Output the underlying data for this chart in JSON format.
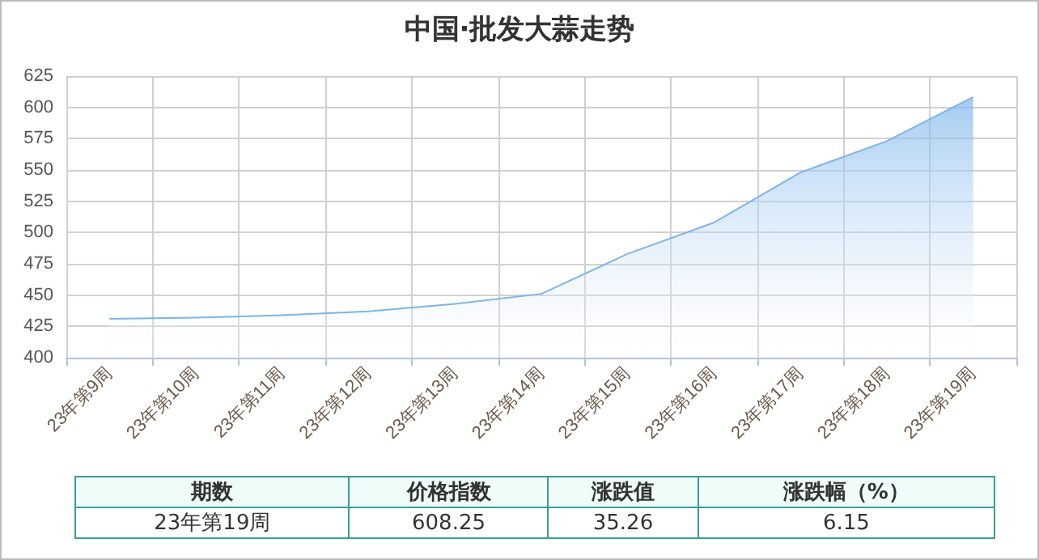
{
  "chart_data": {
    "type": "area",
    "title": "中国·批发大蒜走势",
    "categories": [
      "23年第9周",
      "23年第10周",
      "23年第11周",
      "23年第12周",
      "23年第13周",
      "23年第14周",
      "23年第15周",
      "23年第16周",
      "23年第17周",
      "23年第18周",
      "23年第19周"
    ],
    "series": [
      {
        "color": "#7cb5ec",
        "values": [
          431,
          432,
          434,
          437,
          443,
          451,
          483,
          508,
          548,
          573,
          608.25
        ]
      }
    ],
    "ylim": [
      400,
      625
    ],
    "yticks": [
      400,
      425,
      450,
      475,
      500,
      525,
      550,
      575,
      600,
      625
    ],
    "grid": true,
    "marker": "none",
    "annotations": [
      "期数",
      "价格指数",
      "涨跌值",
      "涨跌幅（%）",
      "23年第19周",
      "608.25",
      "35.26",
      "6.15"
    ]
  }
}
